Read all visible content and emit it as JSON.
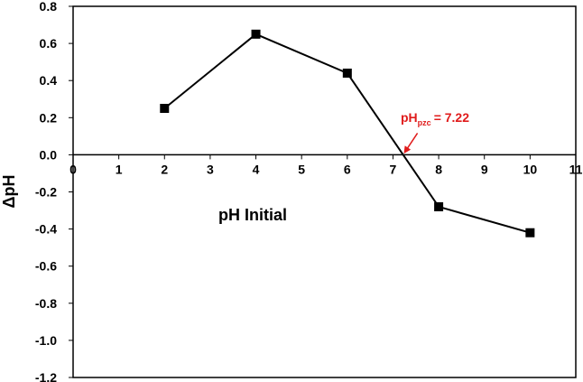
{
  "chart_data": {
    "type": "line",
    "xlabel": "pH Initial",
    "ylabel": "ΔpH",
    "xlim": [
      0,
      11
    ],
    "ylim": [
      -1.2,
      0.8
    ],
    "x_ticks": [
      "0",
      "1",
      "2",
      "3",
      "4",
      "5",
      "6",
      "7",
      "8",
      "9",
      "10",
      "11"
    ],
    "y_ticks": [
      "0.8",
      "0.6",
      "0.4",
      "0.2",
      "0.0",
      "-0.2",
      "-0.4",
      "-0.6",
      "-0.8",
      "-1.0",
      "-1.2"
    ],
    "grid": false,
    "legend": "none",
    "series": [
      {
        "x": [
          2,
          4,
          6,
          8,
          10
        ],
        "y": [
          0.25,
          0.65,
          0.44,
          -0.28,
          -0.42
        ],
        "marker": "square",
        "color": "#000000"
      }
    ],
    "annotation": {
      "text_main": "pH",
      "text_sub": "pzc",
      "text_value": "= 7.22",
      "x": 7.22,
      "y": 0.0,
      "color": "#e01b1b"
    }
  }
}
